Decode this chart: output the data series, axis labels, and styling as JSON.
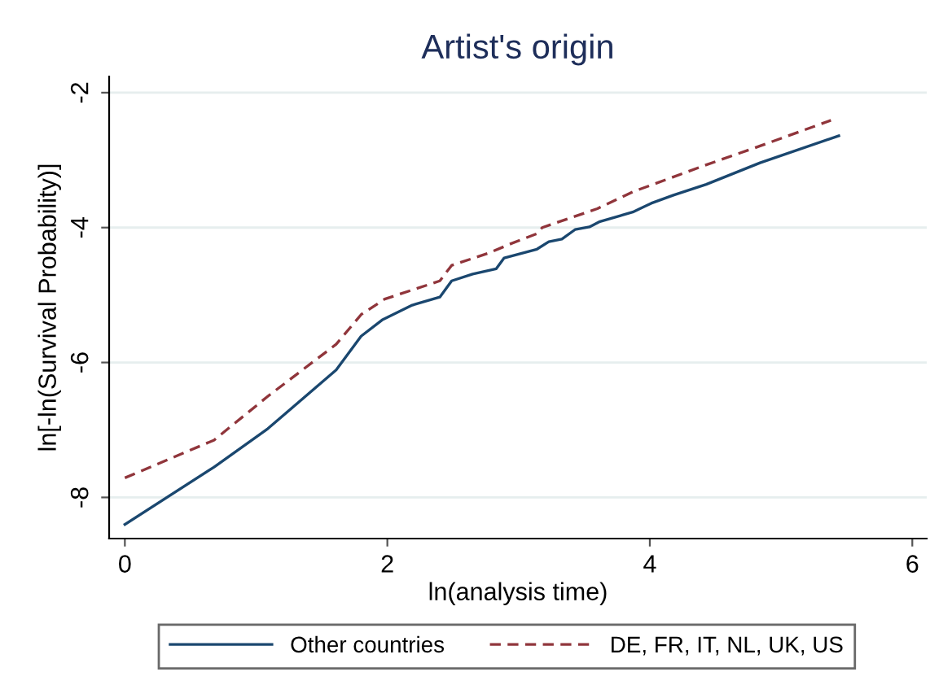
{
  "chart_data": {
    "type": "line",
    "title": "Artist's origin",
    "xlabel": "ln(analysis time)",
    "ylabel": "ln[-ln(Survival Probability)]",
    "xlim": [
      -0.12,
      6.11
    ],
    "ylim": [
      -8.61,
      -1.76
    ],
    "xticks": [
      0,
      2,
      4,
      6
    ],
    "yticks": [
      -8,
      -6,
      -4,
      -2
    ],
    "grid": "y",
    "legend": "bottom",
    "series": [
      {
        "name": "Other countries",
        "color": "#1a476f",
        "line_style": "solid",
        "x": [
          0,
          0.68,
          1.09,
          1.61,
          1.8,
          1.96,
          2.19,
          2.4,
          2.49,
          2.65,
          2.83,
          2.89,
          3.14,
          3.23,
          3.33,
          3.43,
          3.54,
          3.62,
          3.87,
          4.01,
          4.18,
          4.43,
          4.84,
          5.44
        ],
        "values": [
          -8.4,
          -7.55,
          -6.98,
          -6.11,
          -5.61,
          -5.37,
          -5.15,
          -5.03,
          -4.79,
          -4.69,
          -4.61,
          -4.45,
          -4.32,
          -4.21,
          -4.17,
          -4.03,
          -3.99,
          -3.91,
          -3.77,
          -3.64,
          -3.52,
          -3.36,
          -3.04,
          -2.64
        ]
      },
      {
        "name": "DE, FR, IT, NL, UK, US",
        "color": "#90353b",
        "line_style": "dashed",
        "x": [
          0,
          0.68,
          1.09,
          1.61,
          1.8,
          1.98,
          2.4,
          2.49,
          2.77,
          2.94,
          3.14,
          3.18,
          3.6,
          3.87,
          4.43,
          4.84,
          5.38
        ],
        "values": [
          -7.71,
          -7.15,
          -6.5,
          -5.73,
          -5.29,
          -5.06,
          -4.79,
          -4.56,
          -4.38,
          -4.24,
          -4.09,
          -4.0,
          -3.72,
          -3.47,
          -3.07,
          -2.79,
          -2.41
        ]
      }
    ]
  }
}
